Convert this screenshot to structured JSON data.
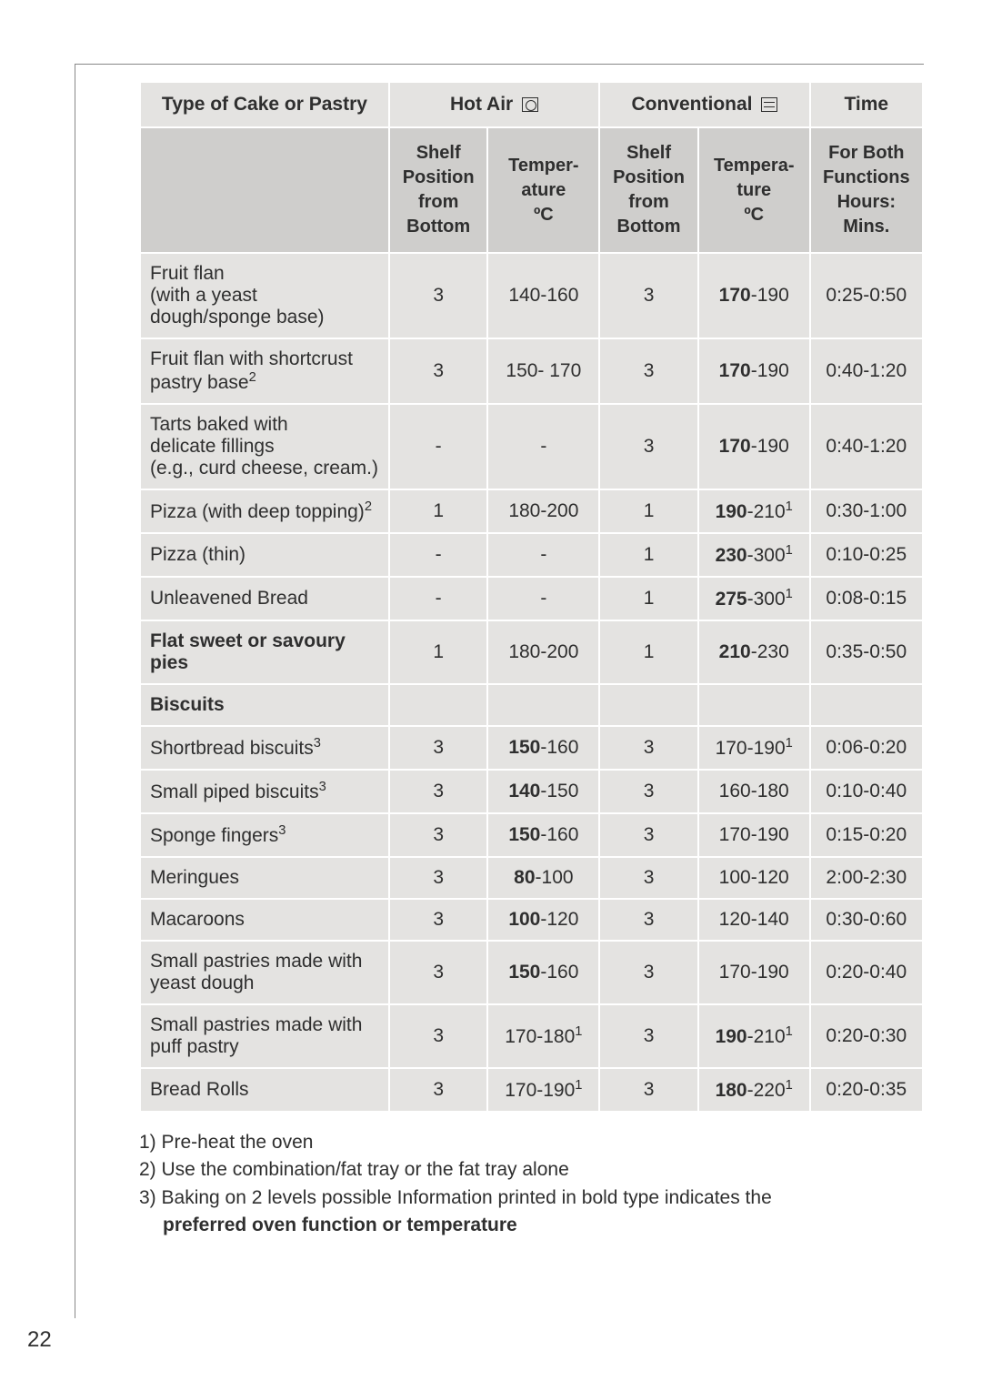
{
  "header": {
    "col1": "Type of Cake or Pastry",
    "hot_air": "Hot Air",
    "conventional": "Conventional",
    "time": "Time",
    "sub": {
      "shelf": "Shelf\nPosition\nfrom\nBottom",
      "temp1": "Temper-\nature\nºC",
      "temp2": "Tempera-\nture\nºC",
      "time": "For Both\nFunctions\nHours:\nMins."
    }
  },
  "rows": [
    {
      "name": "Fruit flan\n(with a yeast dough/sponge base)",
      "ha_pos": "3",
      "ha_temp": "140-160",
      "cv_pos": "3",
      "cv_temp": "170-190",
      "cv_bold_prefix": "170",
      "time": "0:25-0:50"
    },
    {
      "name": "Fruit flan with shortcrust pastry base",
      "name_sup": "2",
      "ha_pos": "3",
      "ha_temp": "150- 170",
      "cv_pos": "3",
      "cv_temp": "170-190",
      "cv_bold_prefix": "170",
      "time": "0:40-1:20"
    },
    {
      "name": "Tarts baked with\ndelicate fillings\n(e.g., curd cheese, cream.)",
      "ha_pos": "-",
      "ha_temp": "-",
      "cv_pos": "3",
      "cv_temp": "170-190",
      "cv_bold_prefix": "170",
      "time": "0:40-1:20"
    },
    {
      "name": "Pizza (with deep topping)",
      "name_sup": "2",
      "ha_pos": "1",
      "ha_temp": "180-200",
      "cv_pos": "1",
      "cv_temp": "190-210",
      "cv_bold_prefix": "190",
      "cv_sup": "1",
      "time": "0:30-1:00"
    },
    {
      "name": "Pizza (thin)",
      "ha_pos": "-",
      "ha_temp": "-",
      "cv_pos": "1",
      "cv_temp": "230-300",
      "cv_bold_prefix": "230",
      "cv_sup": "1",
      "time": "0:10-0:25"
    },
    {
      "name": "Unleavened Bread",
      "ha_pos": "-",
      "ha_temp": "-",
      "cv_pos": "1",
      "cv_temp": "275-300",
      "cv_bold_prefix": "275",
      "cv_sup": "1",
      "time": "0:08-0:15"
    },
    {
      "name": "Flat sweet or savoury pies",
      "name_bold": true,
      "ha_pos": "1",
      "ha_temp": "180-200",
      "cv_pos": "1",
      "cv_temp": "210-230",
      "cv_bold_prefix": "210",
      "time": "0:35-0:50"
    },
    {
      "name": "Biscuits",
      "section": true
    },
    {
      "name": "Shortbread biscuits",
      "name_sup": "3",
      "ha_pos": "3",
      "ha_temp": "150-160",
      "ha_bold_prefix": "150",
      "cv_pos": "3",
      "cv_temp": "170-190",
      "cv_sup": "1",
      "time": "0:06-0:20"
    },
    {
      "name": "Small piped biscuits",
      "name_sup": "3",
      "ha_pos": "3",
      "ha_temp": "140-150",
      "ha_bold_prefix": "140",
      "cv_pos": "3",
      "cv_temp": "160-180",
      "time": "0:10-0:40"
    },
    {
      "name": "Sponge fingers",
      "name_sup": "3",
      "ha_pos": "3",
      "ha_temp": "150-160",
      "ha_bold_prefix": "150",
      "cv_pos": "3",
      "cv_temp": "170-190",
      "time": "0:15-0:20"
    },
    {
      "name": "Meringues",
      "ha_pos": "3",
      "ha_temp": "80-100",
      "ha_bold_prefix": "80",
      "cv_pos": "3",
      "cv_temp": "100-120",
      "time": "2:00-2:30"
    },
    {
      "name": "Macaroons",
      "ha_pos": "3",
      "ha_temp": "100-120",
      "ha_bold_prefix": "100",
      "cv_pos": "3",
      "cv_temp": "120-140",
      "time": "0:30-0:60"
    },
    {
      "name": "Small pastries made with yeast dough",
      "ha_pos": "3",
      "ha_temp": "150-160",
      "ha_bold_prefix": "150",
      "cv_pos": "3",
      "cv_temp": "170-190",
      "time": "0:20-0:40"
    },
    {
      "name": "Small pastries made with puff pastry",
      "ha_pos": "3",
      "ha_temp": "170-180",
      "ha_sup": "1",
      "cv_pos": "3",
      "cv_temp": "190-210",
      "cv_bold_prefix": "190",
      "cv_sup": "1",
      "time": "0:20-0:30"
    },
    {
      "name": "Bread Rolls",
      "ha_pos": "3",
      "ha_temp": "170-190",
      "ha_sup": "1",
      "cv_pos": "3",
      "cv_temp": "180-220",
      "cv_bold_prefix": "180",
      "cv_sup": "1",
      "time": "0:20-0:35"
    }
  ],
  "footnotes": {
    "f1": "1) Pre-heat the oven",
    "f2": "2) Use the combination/fat tray or the fat tray alone",
    "f3": "3) Baking on 2 levels possible Information printed in bold type indicates the",
    "f3b": "preferred oven function or temperature"
  },
  "page_number": "22"
}
